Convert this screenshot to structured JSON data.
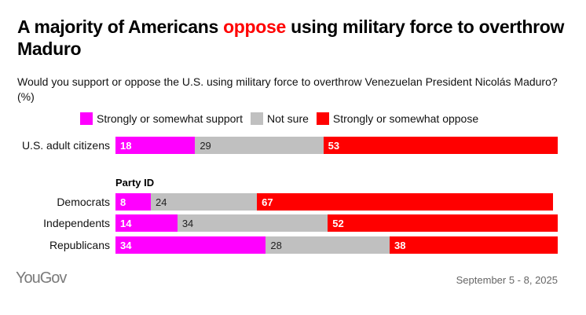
{
  "title": {
    "before": "A majority of Americans ",
    "highlight": "oppose",
    "after": " using military force to overthrow Maduro"
  },
  "subtitle": "Would you support or oppose the U.S. using military force to overthrow Venezuelan President Nicolás Maduro? (%)",
  "footer": {
    "logo": "YouGov",
    "date": "September 5 - 8, 2025"
  },
  "chart_data": {
    "type": "bar",
    "orientation": "horizontal",
    "stacked": true,
    "xlim": [
      0,
      100
    ],
    "legend_position": "top",
    "categories": [
      "U.S. adult citizens",
      "Democrats",
      "Independents",
      "Republicans"
    ],
    "group_label": "Party ID",
    "series": [
      {
        "name": "Strongly or somewhat support",
        "color": "#ff00ff",
        "label_color": "#ffffff",
        "values": [
          18,
          8,
          14,
          34
        ]
      },
      {
        "name": "Not sure",
        "color": "#c0c0c0",
        "label_color": "#222222",
        "values": [
          29,
          24,
          34,
          28
        ]
      },
      {
        "name": "Strongly or somewhat oppose",
        "color": "#ff0000",
        "label_color": "#ffffff",
        "values": [
          53,
          67,
          52,
          38
        ]
      }
    ]
  }
}
